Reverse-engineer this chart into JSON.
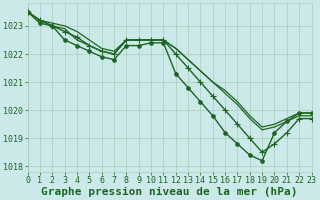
{
  "title": "Graphe pression niveau de la mer (hPa)",
  "xlim": [
    0,
    23
  ],
  "ylim": [
    1017.8,
    1023.8
  ],
  "yticks": [
    1018,
    1019,
    1020,
    1021,
    1022,
    1023
  ],
  "xticks": [
    0,
    1,
    2,
    3,
    4,
    5,
    6,
    7,
    8,
    9,
    10,
    11,
    12,
    13,
    14,
    15,
    16,
    17,
    18,
    19,
    20,
    21,
    22,
    23
  ],
  "bg_color": "#cce9e9",
  "grid_color": "#aaccbb",
  "line_color": "#1a6620",
  "title_color": "#1a6620",
  "title_fontsize": 8.0,
  "tick_fontsize": 6.0,
  "tick_color": "#1a6620",
  "lines": [
    {
      "y": [
        1023.5,
        1023.2,
        1023.1,
        1023.0,
        1022.8,
        1022.5,
        1022.2,
        1022.1,
        1022.5,
        1022.5,
        1022.5,
        1022.5,
        1022.2,
        1021.8,
        1021.4,
        1021.0,
        1020.7,
        1020.3,
        1019.8,
        1019.4,
        1019.5,
        1019.7,
        1019.9,
        1019.9
      ],
      "lw": 0.9,
      "marker": null,
      "ms": 0
    },
    {
      "y": [
        1023.5,
        1023.2,
        1023.0,
        1022.9,
        1022.5,
        1022.3,
        1022.1,
        1022.0,
        1022.5,
        1022.5,
        1022.5,
        1022.5,
        1022.2,
        1021.8,
        1021.4,
        1021.0,
        1020.6,
        1020.2,
        1019.7,
        1019.3,
        1019.4,
        1019.6,
        1019.8,
        1019.8
      ],
      "lw": 0.9,
      "marker": null,
      "ms": 0
    },
    {
      "y": [
        1023.5,
        1023.2,
        1023.0,
        1022.8,
        1022.6,
        1022.3,
        1022.1,
        1022.0,
        1022.5,
        1022.5,
        1022.5,
        1022.5,
        1022.0,
        1021.5,
        1021.0,
        1020.5,
        1020.0,
        1019.5,
        1019.0,
        1018.5,
        1018.8,
        1019.2,
        1019.7,
        1019.7
      ],
      "lw": 1.0,
      "marker": "+",
      "ms": 4.5
    },
    {
      "y": [
        1023.5,
        1023.1,
        1023.0,
        1022.5,
        1022.3,
        1022.1,
        1021.9,
        1021.8,
        1022.3,
        1022.3,
        1022.4,
        1022.4,
        1021.3,
        1020.8,
        1020.3,
        1019.8,
        1019.2,
        1018.8,
        1018.4,
        1018.2,
        1019.2,
        1019.6,
        1019.9,
        1019.9
      ],
      "lw": 1.0,
      "marker": "o",
      "ms": 2.5
    }
  ]
}
